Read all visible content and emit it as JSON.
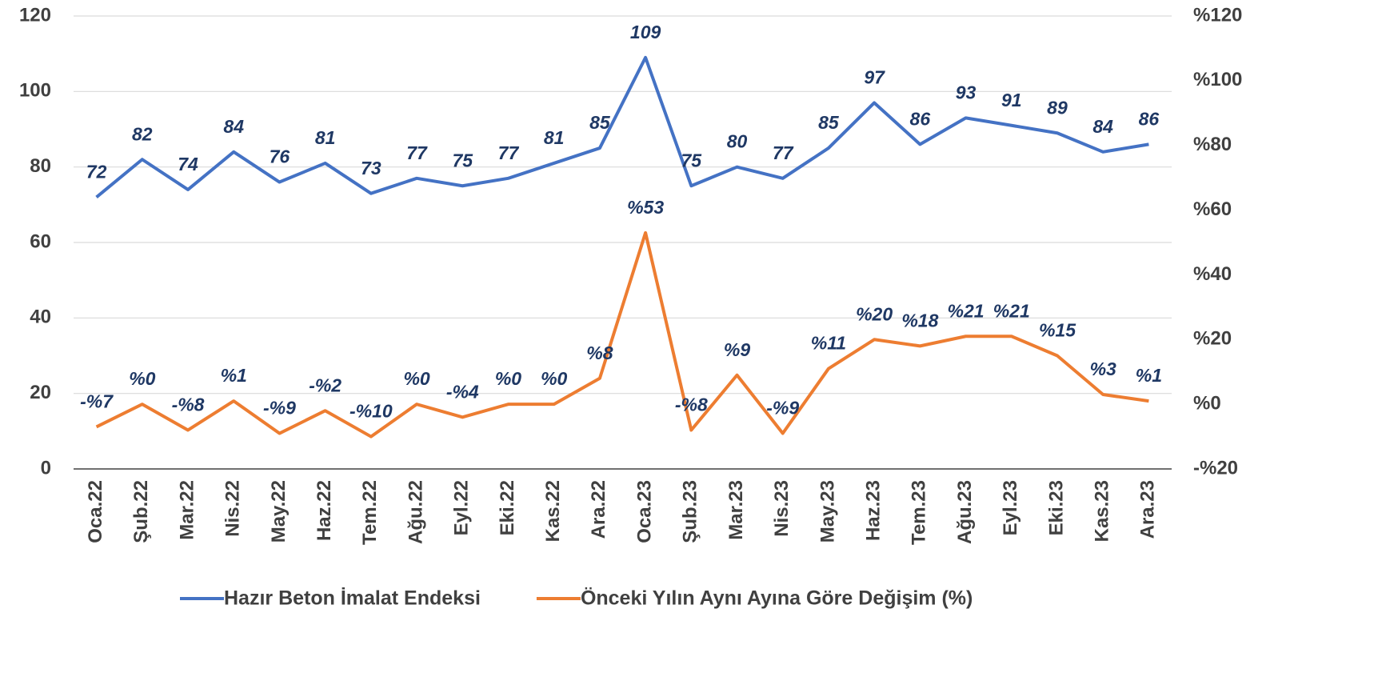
{
  "chart_data": {
    "type": "line",
    "categories": [
      "Oca.22",
      "Şub.22",
      "Mar.22",
      "Nis.22",
      "May.22",
      "Haz.22",
      "Tem.22",
      "Ağu.22",
      "Eyl.22",
      "Eki.22",
      "Kas.22",
      "Ara.22",
      "Oca.23",
      "Şub.23",
      "Mar.23",
      "Nis.23",
      "May.23",
      "Haz.23",
      "Tem.23",
      "Ağu.23",
      "Eyl.23",
      "Eki.23",
      "Kas.23",
      "Ara.23"
    ],
    "series": [
      {
        "name": "Hazır Beton İmalat Endeksi",
        "color": "#4472c4",
        "values": [
          72,
          82,
          74,
          84,
          76,
          81,
          73,
          77,
          75,
          77,
          81,
          85,
          109,
          75,
          80,
          77,
          85,
          97,
          86,
          93,
          91,
          89,
          84,
          86
        ]
      },
      {
        "name": "Önceki Yılın Aynı Ayına Göre Değişim (%)",
        "color": "#ed7d31",
        "axis": "y2",
        "values": [
          -7,
          0,
          -8,
          1,
          -9,
          -2,
          -10,
          0,
          -4,
          0,
          0,
          8,
          53,
          -8,
          9,
          -9,
          11,
          20,
          18,
          21,
          21,
          15,
          3,
          1
        ],
        "value_labels": [
          "-%7",
          "%0",
          "-%8",
          "%1",
          "-%9",
          "-%2",
          "-%10",
          "%0",
          "-%4",
          "%0",
          "%0",
          "%8",
          "%53",
          "-%8",
          "%9",
          "-%9",
          "%11",
          "%20",
          "%18",
          "%21",
          "%21",
          "%15",
          "%3",
          "%1"
        ]
      }
    ],
    "ylim": [
      0,
      120
    ],
    "yticks": [
      0,
      20,
      40,
      60,
      80,
      100,
      120
    ],
    "y2lim": [
      -20,
      120
    ],
    "y2ticks": [
      {
        "value": -20,
        "label": "-%20"
      },
      {
        "value": 0,
        "label": "%0"
      },
      {
        "value": 20,
        "label": "%20"
      },
      {
        "value": 40,
        "label": "%40"
      },
      {
        "value": 60,
        "label": "%60"
      },
      {
        "value": 80,
        "label": "%80"
      },
      {
        "value": 100,
        "label": "%100"
      },
      {
        "value": 120,
        "label": "%120"
      }
    ],
    "grid": true,
    "legend": "bottom"
  }
}
